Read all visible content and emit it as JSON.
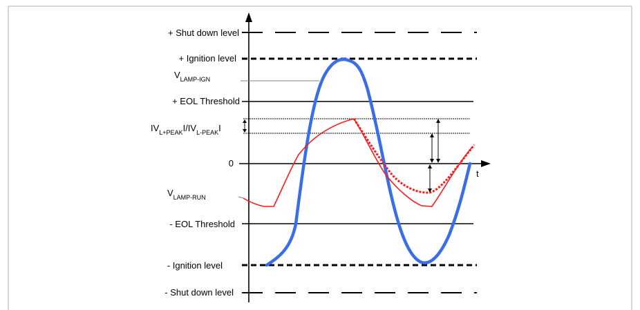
{
  "labels": {
    "plus_shutdown": "+ Shut down level",
    "plus_ignition": "+ Ignition level",
    "v_lamp_ign_main": "V",
    "v_lamp_ign_sub": "LAMP-IGN",
    "plus_eol": "+ EOL Threshold",
    "peak_v1": "IV",
    "peak_sub1": "L+PEAK",
    "peak_mid": "I/IV",
    "peak_sub2": "L-PEAK",
    "peak_end": "I",
    "zero": "0",
    "t_axis": "t",
    "v_lamp_run_main": "V",
    "v_lamp_run_sub": "LAMP-RUN",
    "minus_eol": "- EOL Threshold",
    "minus_ignition": "- Ignition level",
    "minus_shutdown": "- Shut down level"
  },
  "colors": {
    "ign_curve": "#3a6ee8",
    "run_curve": "#ff1a1a",
    "lines": "#000000",
    "leader": "#808080",
    "border": "#b0b0b0"
  }
}
